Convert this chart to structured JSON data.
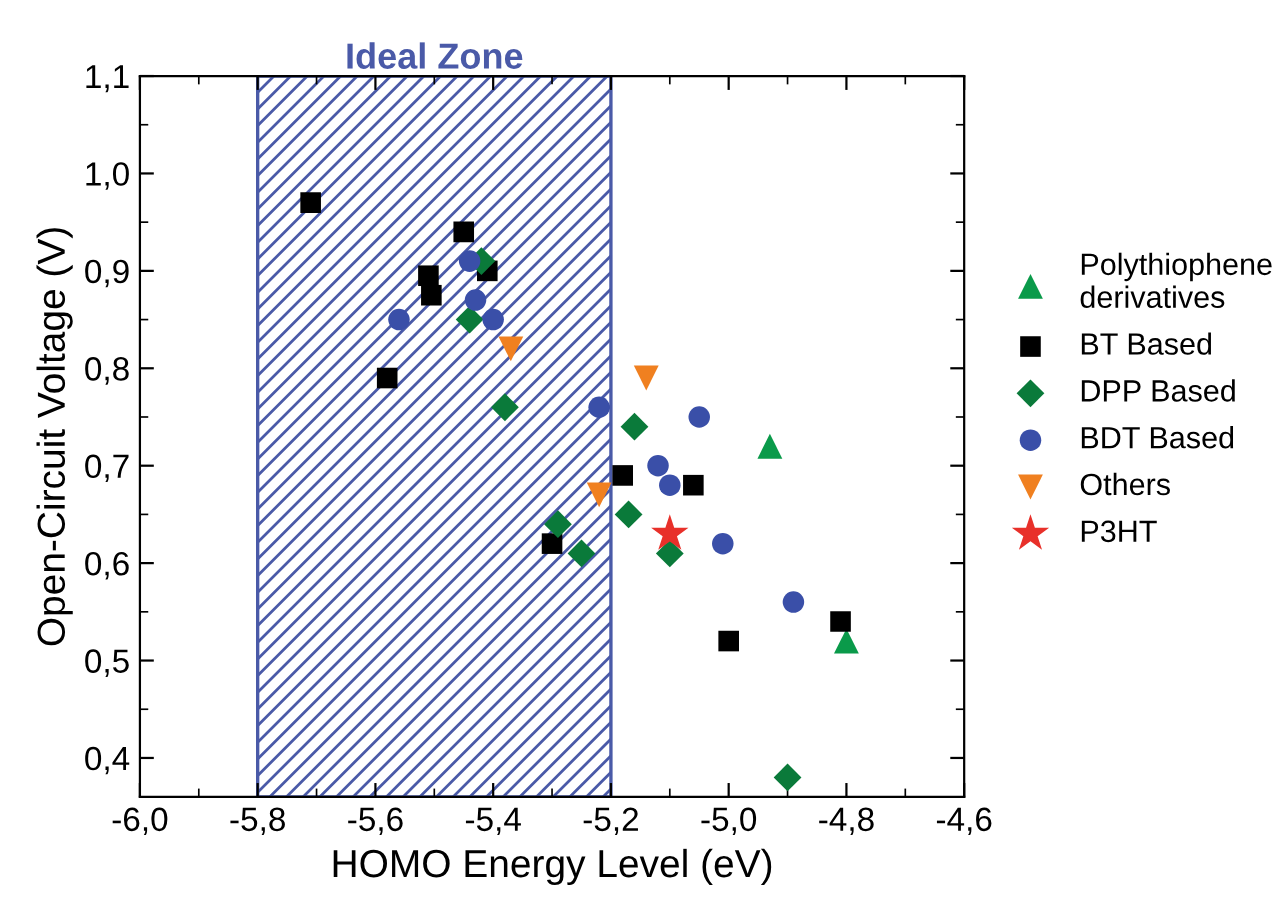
{
  "chart_data": {
    "type": "scatter",
    "xlabel": "HOMO Energy Level (eV)",
    "ylabel": "Open-Circuit Voltage (V)",
    "xlim": [
      -6.0,
      -4.6
    ],
    "ylim": [
      0.36,
      1.1
    ],
    "xticks": [
      {
        "value": -6.0,
        "label": "-6,0"
      },
      {
        "value": -5.8,
        "label": "-5,8"
      },
      {
        "value": -5.6,
        "label": "-5,6"
      },
      {
        "value": -5.4,
        "label": "-5,4"
      },
      {
        "value": -5.2,
        "label": "-5,2"
      },
      {
        "value": -5.0,
        "label": "-5,0"
      },
      {
        "value": -4.8,
        "label": "-4,8"
      },
      {
        "value": -4.6,
        "label": "-4,6"
      }
    ],
    "yticks": [
      {
        "value": 0.4,
        "label": "0,4"
      },
      {
        "value": 0.5,
        "label": "0,5"
      },
      {
        "value": 0.6,
        "label": "0,6"
      },
      {
        "value": 0.7,
        "label": "0,7"
      },
      {
        "value": 0.8,
        "label": "0,8"
      },
      {
        "value": 0.9,
        "label": "0,9"
      },
      {
        "value": 1.0,
        "label": "1,0"
      },
      {
        "value": 1.1,
        "label": "1,1"
      }
    ],
    "bands": [
      {
        "axis": "x",
        "from": -5.8,
        "to": -5.2,
        "label": "Ideal Zone",
        "color": "#4a5aa8"
      }
    ],
    "legend": "right",
    "grid": false,
    "series": [
      {
        "name": "Polythiophene derivatives",
        "color": "#0a9a4a",
        "marker": "triangle",
        "x": [
          -4.93,
          -4.8
        ],
        "values": [
          0.72,
          0.52
        ]
      },
      {
        "name": "BT Based",
        "color": "#000000",
        "marker": "square",
        "x": [
          -5.71,
          -5.58,
          -5.45,
          -5.51,
          -5.505,
          -5.41,
          -5.3,
          -5.18,
          -5.06,
          -5.0,
          -4.81
        ],
        "values": [
          0.97,
          0.79,
          0.94,
          0.895,
          0.875,
          0.9,
          0.62,
          0.69,
          0.68,
          0.52,
          0.54
        ]
      },
      {
        "name": "DPP Based",
        "color": "#0a7a3a",
        "marker": "diamond",
        "x": [
          -5.44,
          -5.42,
          -5.38,
          -5.29,
          -5.25,
          -5.16,
          -5.17,
          -5.1,
          -4.9
        ],
        "values": [
          0.85,
          0.91,
          0.76,
          0.64,
          0.61,
          0.74,
          0.65,
          0.61,
          0.38
        ]
      },
      {
        "name": "BDT Based",
        "color": "#3a4fa8",
        "marker": "circle",
        "x": [
          -5.56,
          -5.44,
          -5.43,
          -5.4,
          -5.22,
          -5.12,
          -5.1,
          -5.05,
          -5.01,
          -4.89
        ],
        "values": [
          0.85,
          0.91,
          0.87,
          0.85,
          0.76,
          0.7,
          0.68,
          0.75,
          0.62,
          0.56
        ]
      },
      {
        "name": "Others",
        "color": "#f08020",
        "marker": "triangle_down",
        "x": [
          -5.37,
          -5.22,
          -5.14
        ],
        "values": [
          0.82,
          0.67,
          0.79
        ]
      },
      {
        "name": "P3HT",
        "color": "#e8302a",
        "marker": "star",
        "x": [
          -5.1
        ],
        "values": [
          0.63
        ]
      }
    ]
  }
}
